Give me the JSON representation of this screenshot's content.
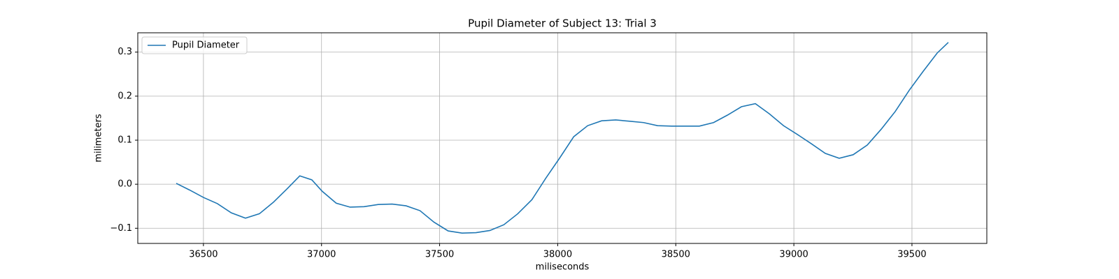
{
  "chart_data": {
    "type": "line",
    "title": "Pupil Diameter of Subject 13: Trial 3",
    "x_label": "miliseconds",
    "y_label": "milimeters",
    "x": [
      36385,
      36441,
      36500,
      36559,
      36618,
      36678,
      36737,
      36796,
      36855,
      36908,
      36959,
      37003,
      37062,
      37121,
      37180,
      37240,
      37299,
      37358,
      37417,
      37476,
      37536,
      37595,
      37654,
      37713,
      37772,
      37831,
      37891,
      37950,
      38009,
      38068,
      38127,
      38186,
      38246,
      38305,
      38364,
      38423,
      38482,
      38541,
      38600,
      38660,
      38719,
      38778,
      38837,
      38896,
      38956,
      39015,
      39074,
      39133,
      39192,
      39251,
      39311,
      39370,
      39429,
      39488,
      39547,
      39607,
      39654
    ],
    "series": [
      {
        "name": "Pupil Diameter",
        "color": "#1f77b4",
        "values": [
          0.002,
          -0.013,
          -0.03,
          -0.044,
          -0.065,
          -0.077,
          -0.067,
          -0.041,
          -0.01,
          0.019,
          0.01,
          -0.016,
          -0.043,
          -0.052,
          -0.051,
          -0.046,
          -0.045,
          -0.049,
          -0.06,
          -0.086,
          -0.106,
          -0.111,
          -0.11,
          -0.105,
          -0.092,
          -0.067,
          -0.035,
          0.014,
          0.06,
          0.108,
          0.133,
          0.144,
          0.146,
          0.143,
          0.14,
          0.133,
          0.132,
          0.132,
          0.132,
          0.14,
          0.157,
          0.176,
          0.183,
          0.16,
          0.133,
          0.113,
          0.092,
          0.07,
          0.059,
          0.067,
          0.089,
          0.125,
          0.165,
          0.213,
          0.256,
          0.298,
          0.322
        ]
      }
    ],
    "xlim": [
      36222,
      39817
    ],
    "ylim": [
      -0.1344,
      0.3439
    ],
    "xticks": [
      36500,
      37000,
      37500,
      38000,
      38500,
      39000,
      39500
    ],
    "yticks": [
      {
        "value": -0.1,
        "label": "−0.1"
      },
      {
        "value": 0,
        "label": "0.0"
      },
      0.1,
      0.2,
      0.3
    ],
    "grid": true,
    "legend": "upper left"
  }
}
